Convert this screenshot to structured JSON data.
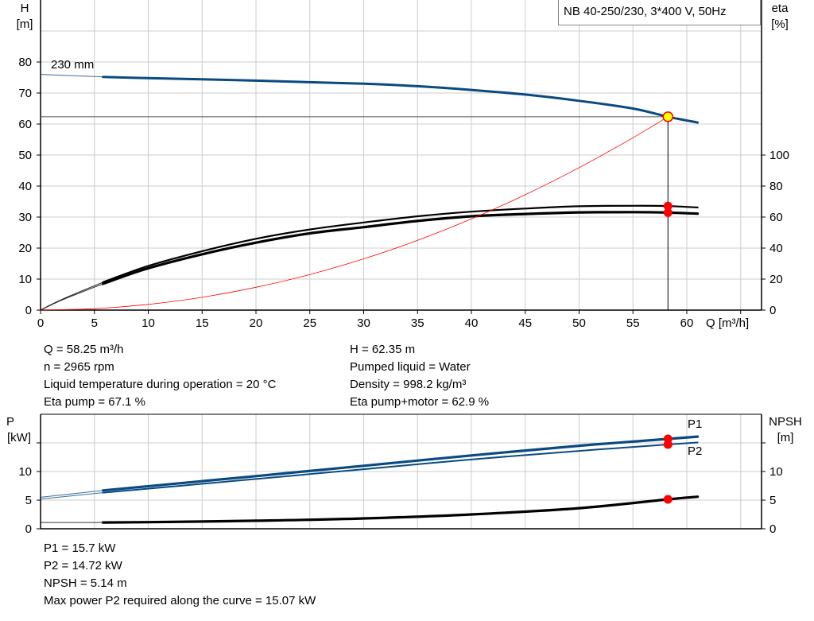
{
  "title": "NB 40-250/230, 3*400 V, 50Hz",
  "colors": {
    "head": "#0a4a80",
    "eta": "#000000",
    "system": "#ff0000",
    "power": "#0a4a80",
    "npsh": "#000000",
    "duty_point": "#ffff00",
    "marker": "#ff0000",
    "grid": "#cccccc"
  },
  "chart_data": [
    {
      "type": "line",
      "xlabel": "Q [m³/h]",
      "ylabel": "H\n[m]",
      "ylabel_top": "H",
      "ylabel_unit": "[m]",
      "y2label_top": "eta",
      "y2label_unit": "[%]",
      "xlim": [
        0,
        67
      ],
      "ylim": [
        0,
        100
      ],
      "y2lim": [
        0,
        200
      ],
      "xticks": [
        0,
        5,
        10,
        15,
        20,
        25,
        30,
        35,
        40,
        45,
        50,
        55,
        60
      ],
      "yticks": [
        0,
        10,
        20,
        30,
        40,
        50,
        60,
        70,
        80
      ],
      "y2ticks": [
        0,
        20,
        40,
        60,
        80,
        100
      ],
      "grid": true,
      "annotation": "230 mm",
      "duty_point": {
        "Q": 58.25,
        "H": 62.35,
        "eta_pump": 67.1,
        "eta_total": 62.9
      },
      "series": [
        {
          "key": "head",
          "axis": "H",
          "x": [
            0,
            5.8,
            10,
            15,
            20,
            25,
            30,
            35,
            40,
            45,
            50,
            55,
            58.25,
            61
          ],
          "y": [
            76,
            75.2,
            74.8,
            74.4,
            74,
            73.5,
            73,
            72.2,
            71,
            69.5,
            67.5,
            65,
            62.35,
            60.5
          ],
          "extrapolated_below": 5.8
        },
        {
          "key": "eta_pump",
          "axis": "eta",
          "x": [
            0,
            2,
            5.8,
            10,
            15,
            20,
            25,
            30,
            35,
            40,
            45,
            50,
            55,
            58.25,
            61
          ],
          "y": [
            0,
            7,
            18,
            28.5,
            38,
            46,
            52,
            56.5,
            60.5,
            63.5,
            65.5,
            67,
            67.3,
            67.1,
            66.2
          ],
          "extrapolated_below": 5.8
        },
        {
          "key": "eta_total",
          "axis": "eta",
          "x": [
            0,
            2,
            5.8,
            10,
            15,
            20,
            25,
            30,
            35,
            40,
            45,
            50,
            55,
            58.25,
            61
          ],
          "y": [
            0,
            6.5,
            17,
            27,
            36,
            43.5,
            49.5,
            53.5,
            57.5,
            60.5,
            62,
            63,
            63.2,
            62.9,
            62.2
          ],
          "extrapolated_below": 5.8
        },
        {
          "key": "system",
          "axis": "H",
          "x": [
            0,
            5,
            10,
            15,
            20,
            25,
            30,
            35,
            40,
            45,
            50,
            55,
            58.25
          ],
          "y": [
            0,
            0.46,
            1.84,
            4.13,
            7.35,
            11.49,
            16.54,
            22.51,
            29.4,
            37.21,
            45.94,
            55.58,
            62.35
          ]
        }
      ]
    },
    {
      "type": "line",
      "ylabel_top": "P",
      "ylabel_unit": "[kW]",
      "y2label_top": "NPSH",
      "y2label_unit": "[m]",
      "xlim": [
        0,
        67
      ],
      "ylim": [
        0,
        20
      ],
      "y2lim": [
        0,
        20
      ],
      "yticks": [
        0,
        5,
        10,
        15
      ],
      "yticklabels": [
        "0",
        "5",
        "10",
        ""
      ],
      "y2ticks": [
        0,
        5,
        10,
        15
      ],
      "y2ticklabels": [
        "0",
        "5",
        "10",
        ""
      ],
      "grid": true,
      "series": [
        {
          "key": "P1",
          "name": "P1",
          "axis": "P",
          "x": [
            0,
            5.8,
            20,
            30,
            40,
            50,
            58.25,
            61
          ],
          "y": [
            5.5,
            6.7,
            9.2,
            11,
            12.8,
            14.5,
            15.7,
            16.1
          ],
          "extrapolated_below": 5.8
        },
        {
          "key": "P2",
          "name": "P2",
          "axis": "P",
          "x": [
            0,
            5.8,
            20,
            30,
            40,
            50,
            58.25,
            61
          ],
          "y": [
            5.2,
            6.3,
            8.7,
            10.4,
            12.1,
            13.6,
            14.72,
            15.07
          ],
          "extrapolated_below": 5.8
        },
        {
          "key": "NPSH",
          "axis": "NPSH",
          "x": [
            0,
            5.8,
            10,
            20,
            30,
            40,
            50,
            58.25,
            61
          ],
          "y": [
            1.1,
            1.1,
            1.15,
            1.4,
            1.8,
            2.5,
            3.6,
            5.14,
            5.6
          ],
          "extrapolated_below": 5.8
        }
      ],
      "markers": [
        {
          "Q": 58.25,
          "y": 15.7
        },
        {
          "Q": 58.25,
          "y": 14.72
        },
        {
          "Q": 58.25,
          "y": 5.14
        }
      ]
    }
  ],
  "info_top_left": [
    "Q = 58.25 m³/h",
    "n = 2965 rpm",
    "Liquid temperature during operation = 20 °C",
    "Eta pump = 67.1 %"
  ],
  "info_top_right": [
    "H = 62.35 m",
    "Pumped liquid = Water",
    "Density = 998.2 kg/m³",
    "Eta pump+motor = 62.9 %"
  ],
  "info_bottom": [
    "P1 = 15.7 kW",
    "P2 = 14.72 kW",
    "NPSH = 5.14 m",
    "Max power P2 required along the curve = 15.07 kW"
  ]
}
